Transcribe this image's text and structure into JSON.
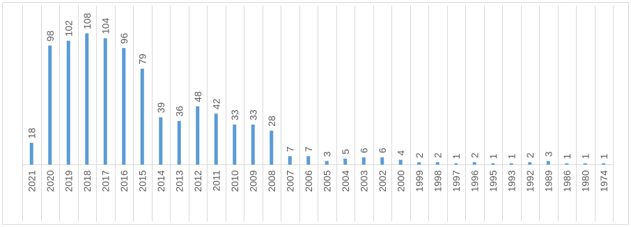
{
  "chart_data": {
    "type": "bar",
    "categories": [
      "2021",
      "2020",
      "2019",
      "2018",
      "2017",
      "2016",
      "2015",
      "2014",
      "2013",
      "2012",
      "2011",
      "2010",
      "2009",
      "2008",
      "2007",
      "2006",
      "2005",
      "2004",
      "2003",
      "2002",
      "2000",
      "1999",
      "1998",
      "1997",
      "1996",
      "1995",
      "1993",
      "1992",
      "1989",
      "1986",
      "1980",
      "1974"
    ],
    "values": [
      18,
      98,
      102,
      108,
      104,
      96,
      79,
      39,
      36,
      48,
      42,
      33,
      33,
      28,
      7,
      7,
      3,
      5,
      6,
      6,
      4,
      2,
      2,
      1,
      2,
      1,
      1,
      2,
      3,
      1,
      1,
      1
    ],
    "ylim": [
      0,
      108
    ],
    "grid": "vertical",
    "legend": "none",
    "data_labels": true,
    "bar_color": "#5B9BD5",
    "grid_color": "#D9D9D9",
    "border_color": "#D9D9D9",
    "label_color": "#595959"
  }
}
